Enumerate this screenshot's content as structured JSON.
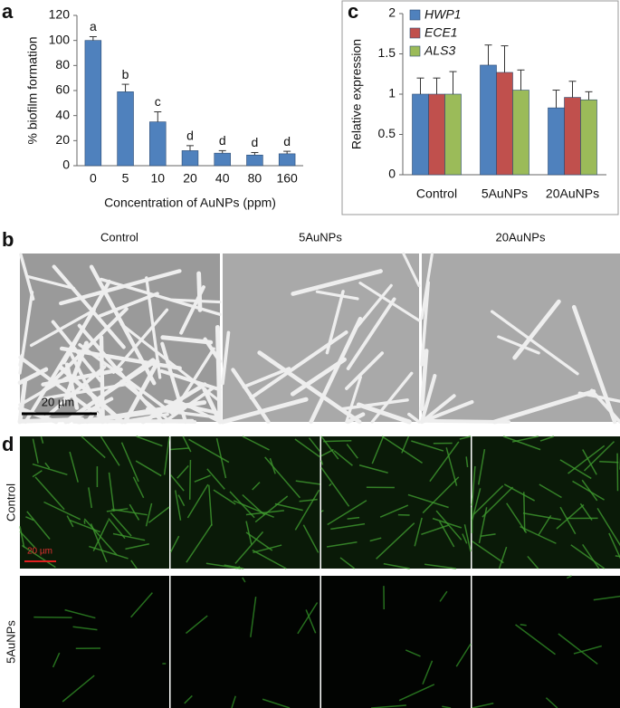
{
  "chart_data": [
    {
      "type": "bar",
      "panel": "a",
      "ylabel": "% biofilm formation",
      "xlabel": "Concentration of AuNPs (ppm)",
      "categories": [
        "0",
        "5",
        "10",
        "20",
        "40",
        "80",
        "160"
      ],
      "values": [
        100,
        59,
        35,
        12,
        10,
        8.5,
        9.5
      ],
      "errors": [
        3,
        6,
        8,
        4,
        2,
        2,
        2
      ],
      "annotations": [
        "a",
        "b",
        "c",
        "d",
        "d",
        "d",
        "d"
      ],
      "color": "#4f81bd",
      "ylim": [
        0,
        120
      ],
      "yticks": [
        0,
        20,
        40,
        60,
        80,
        100,
        120
      ],
      "grid": false
    },
    {
      "type": "bar",
      "panel": "c",
      "ylabel": "Relative expression",
      "categories": [
        "Control",
        "5AuNPs",
        "20AuNPs"
      ],
      "series": [
        {
          "name": "HWP1",
          "color": "#4f81bd",
          "values": [
            1,
            1.36,
            0.83
          ],
          "errors": [
            0.2,
            0.25,
            0.22
          ]
        },
        {
          "name": "ECE1",
          "color": "#c0504d",
          "values": [
            1,
            1.27,
            0.96
          ],
          "errors": [
            0.2,
            0.33,
            0.2
          ]
        },
        {
          "name": "ALS3",
          "color": "#9bbb59",
          "values": [
            1,
            1.05,
            0.93
          ],
          "errors": [
            0.28,
            0.25,
            0.1
          ]
        }
      ],
      "ylim": [
        0,
        2
      ],
      "yticks": [
        0,
        0.5,
        1,
        1.5,
        2
      ],
      "grid": false,
      "legend": "top-left"
    }
  ],
  "panel_b": {
    "label": "b",
    "columns": [
      "Control",
      "5AuNPs",
      "20AuNPs"
    ],
    "scale_bar": "20 µm"
  },
  "panel_d": {
    "label": "d",
    "rows": [
      "Control",
      "5AuNPs"
    ],
    "scale_bar": "20 µm"
  }
}
